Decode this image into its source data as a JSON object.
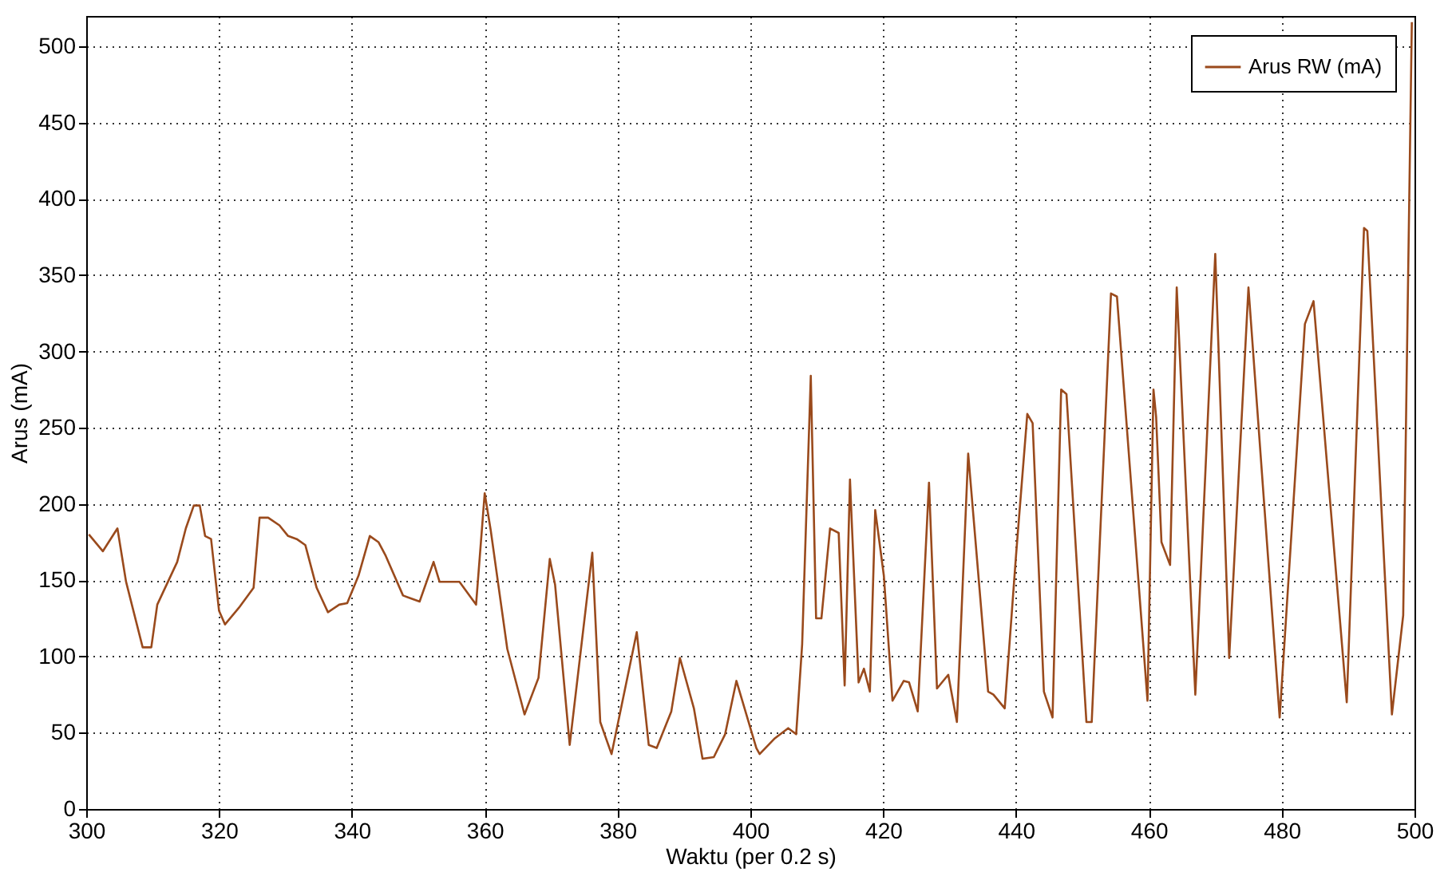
{
  "chart_data": {
    "type": "line",
    "xlabel": "Waktu (per 0.2 s)",
    "ylabel": "Arus (mA)",
    "xlim": [
      300,
      500
    ],
    "ylim": [
      0,
      520
    ],
    "xticks": [
      300,
      320,
      340,
      360,
      380,
      400,
      420,
      440,
      460,
      480,
      500
    ],
    "yticks": [
      0,
      50,
      100,
      150,
      200,
      250,
      300,
      350,
      400,
      450,
      500
    ],
    "grid": true,
    "legend": "top right",
    "line_style": "solid",
    "marker": "none",
    "series": [
      {
        "name": "Arus RW (mA)",
        "color": "#9a4a1c",
        "x": [
          300.4,
          302.5,
          304.7,
          306.0,
          308.5,
          309.8,
          310.7,
          313.7,
          315.0,
          316.2,
          317.1,
          317.9,
          318.8,
          320.0,
          320.9,
          323.0,
          325.2,
          326.1,
          327.4,
          329.1,
          330.4,
          331.7,
          333.0,
          334.7,
          336.4,
          338.1,
          339.3,
          341.0,
          342.7,
          344.0,
          345.1,
          347.7,
          350.2,
          352.3,
          353.2,
          356.2,
          358.7,
          360.0,
          360.9,
          363.4,
          366.0,
          368.1,
          369.8,
          370.6,
          372.8,
          376.2,
          377.4,
          379.1,
          382.9,
          384.7,
          385.9,
          388.1,
          389.4,
          391.5,
          392.8,
          394.5,
          396.2,
          397.9,
          400.9,
          401.4,
          403.6,
          405.7,
          406.9,
          407.8,
          409.1,
          409.9,
          410.7,
          412.0,
          413.3,
          414.2,
          415.0,
          416.3,
          417.1,
          418.0,
          418.8,
          420.1,
          421.4,
          423.1,
          423.9,
          425.2,
          426.9,
          428.1,
          429.8,
          431.1,
          432.8,
          435.8,
          436.6,
          438.3,
          440.0,
          441.7,
          442.5,
          444.2,
          445.5,
          446.8,
          447.6,
          450.6,
          451.4,
          454.3,
          455.2,
          459.8,
          460.7,
          461.1,
          461.9,
          463.2,
          464.2,
          467.0,
          470.0,
          472.1,
          475.0,
          479.7,
          483.5,
          484.8,
          489.8,
          492.4,
          492.9,
          496.6,
          498.3,
          499.6
        ],
        "values": [
          180,
          169,
          184,
          149,
          106,
          106,
          134,
          162,
          184,
          199,
          199,
          179,
          177,
          130,
          121,
          132,
          145,
          191,
          191,
          186,
          179,
          177,
          173,
          145,
          129,
          134,
          135,
          153,
          179,
          175,
          166,
          140,
          136,
          162,
          149,
          149,
          134,
          207,
          183,
          105,
          62,
          86,
          164,
          147,
          42,
          168,
          57,
          36,
          116,
          42,
          40,
          64,
          99,
          66,
          33,
          34,
          49,
          84,
          40,
          36,
          46,
          53,
          49,
          108,
          284,
          125,
          125,
          184,
          181,
          81,
          216,
          83,
          92,
          77,
          196,
          153,
          71,
          84,
          83,
          64,
          214,
          79,
          88,
          57,
          233,
          77,
          75,
          66,
          166,
          259,
          253,
          77,
          60,
          275,
          272,
          57,
          57,
          338,
          336,
          71,
          275,
          257,
          175,
          160,
          342,
          75,
          364,
          99,
          342,
          60,
          318,
          333,
          70,
          381,
          379,
          62,
          127,
          516
        ]
      }
    ]
  }
}
